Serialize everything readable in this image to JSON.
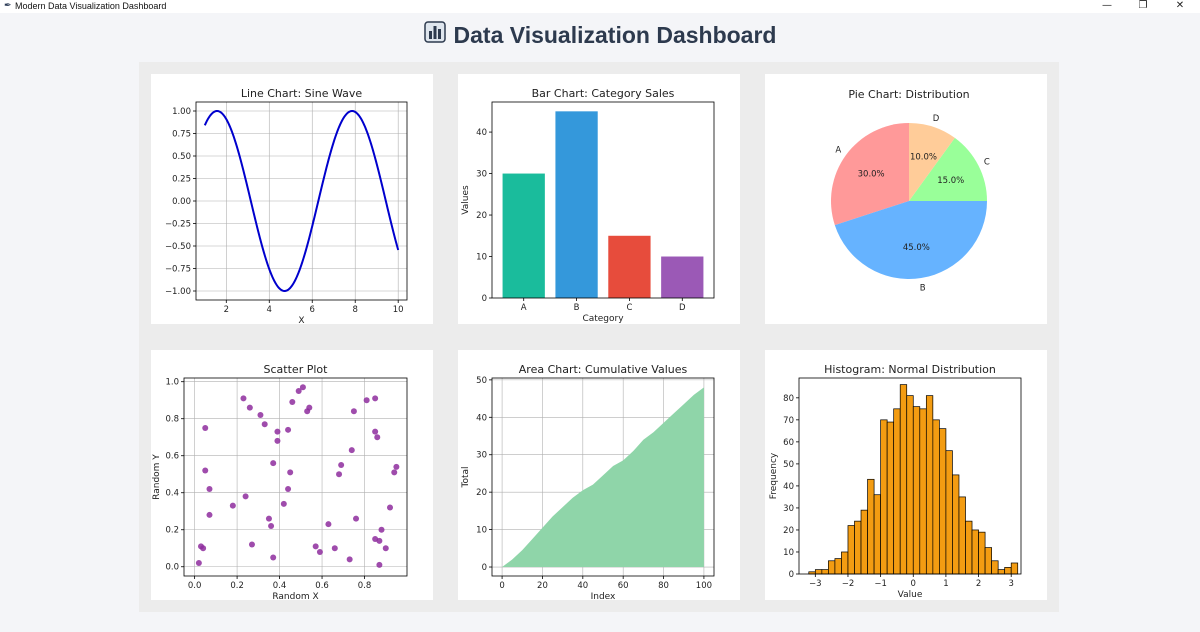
{
  "window": {
    "title": "Modern Data Visualization Dashboard",
    "controls": {
      "minimize": "—",
      "maximize": "❐",
      "close": "✕"
    }
  },
  "header": {
    "title": "Data Visualization Dashboard",
    "icon": "bar-chart-icon"
  },
  "colors": {
    "background": "#f4f5f8",
    "panel": "#ececec",
    "card": "#ffffff",
    "line": "#0000cd",
    "scatter": "#8e2d9e",
    "area": "#8fd5a9",
    "hist": "#f39c12",
    "bars": [
      "#1abc9c",
      "#3498db",
      "#e74c3c",
      "#9b59b6"
    ],
    "pie": [
      "#ff9999",
      "#66b3ff",
      "#99ff99",
      "#ffcc99"
    ]
  },
  "chart_data": [
    {
      "type": "line",
      "title": "Line Chart: Sine Wave",
      "xlabel": "X",
      "ylabel": "",
      "function": "sin(x)",
      "xlim": [
        0.59,
        10.41
      ],
      "x_range": [
        1,
        10
      ],
      "ylim": [
        -1.1,
        1.1
      ],
      "xticks": [
        2,
        4,
        6,
        8,
        10
      ],
      "yticks": [
        1.0,
        0.75,
        0.5,
        0.25,
        0.0,
        -0.25,
        -0.5,
        -0.75,
        -1.0
      ],
      "ytick_labels": [
        "1.00",
        "0.75",
        "0.50",
        "0.25",
        "0.00",
        "−0.25",
        "−0.50",
        "−0.75",
        "−1.00"
      ],
      "grid": true
    },
    {
      "type": "bar",
      "title": "Bar Chart: Category Sales",
      "xlabel": "Category",
      "ylabel": "Values",
      "categories": [
        "A",
        "B",
        "C",
        "D"
      ],
      "values": [
        30,
        45,
        15,
        10
      ],
      "ylim": [
        0,
        47.25
      ],
      "yticks": [
        0,
        10,
        20,
        30,
        40
      ],
      "grid": false
    },
    {
      "type": "pie",
      "title": "Pie Chart: Distribution",
      "labels": [
        "A",
        "B",
        "C",
        "D"
      ],
      "values": [
        30,
        45,
        15,
        10
      ],
      "pct_labels": [
        "30.0%",
        "45.0%",
        "15.0%",
        "10.0%"
      ],
      "startangle": 90
    },
    {
      "type": "scatter",
      "title": "Scatter Plot",
      "xlabel": "Random X",
      "ylabel": "Random Y",
      "xlim": [
        -0.05,
        1.0
      ],
      "ylim": [
        -0.05,
        1.02
      ],
      "xticks": [
        0.0,
        0.2,
        0.4,
        0.6,
        0.8
      ],
      "xtick_labels": [
        "0.0",
        "0.2",
        "0.4",
        "0.6",
        "0.8"
      ],
      "yticks": [
        0.0,
        0.2,
        0.4,
        0.6,
        0.8,
        1.0
      ],
      "ytick_labels": [
        "0.0",
        "0.2",
        "0.4",
        "0.6",
        "0.8",
        "1.0"
      ],
      "grid": true,
      "points": [
        [
          0.02,
          0.02
        ],
        [
          0.03,
          0.11
        ],
        [
          0.04,
          0.1
        ],
        [
          0.05,
          0.52
        ],
        [
          0.05,
          0.75
        ],
        [
          0.07,
          0.42
        ],
        [
          0.07,
          0.28
        ],
        [
          0.18,
          0.33
        ],
        [
          0.23,
          0.91
        ],
        [
          0.24,
          0.38
        ],
        [
          0.26,
          0.86
        ],
        [
          0.27,
          0.12
        ],
        [
          0.31,
          0.82
        ],
        [
          0.33,
          0.77
        ],
        [
          0.35,
          0.26
        ],
        [
          0.36,
          0.22
        ],
        [
          0.37,
          0.05
        ],
        [
          0.37,
          0.56
        ],
        [
          0.39,
          0.73
        ],
        [
          0.39,
          0.68
        ],
        [
          0.42,
          0.34
        ],
        [
          0.44,
          0.42
        ],
        [
          0.44,
          0.74
        ],
        [
          0.45,
          0.51
        ],
        [
          0.46,
          0.89
        ],
        [
          0.49,
          0.95
        ],
        [
          0.51,
          0.97
        ],
        [
          0.53,
          0.84
        ],
        [
          0.54,
          0.86
        ],
        [
          0.57,
          0.11
        ],
        [
          0.59,
          0.08
        ],
        [
          0.63,
          0.23
        ],
        [
          0.66,
          0.1
        ],
        [
          0.68,
          0.5
        ],
        [
          0.69,
          0.55
        ],
        [
          0.73,
          0.04
        ],
        [
          0.74,
          0.63
        ],
        [
          0.75,
          0.84
        ],
        [
          0.76,
          0.26
        ],
        [
          0.81,
          0.9
        ],
        [
          0.85,
          0.91
        ],
        [
          0.85,
          0.73
        ],
        [
          0.85,
          0.15
        ],
        [
          0.86,
          0.7
        ],
        [
          0.87,
          0.14
        ],
        [
          0.87,
          0.01
        ],
        [
          0.88,
          0.2
        ],
        [
          0.9,
          0.1
        ],
        [
          0.92,
          0.32
        ],
        [
          0.94,
          0.51
        ],
        [
          0.95,
          0.54
        ]
      ]
    },
    {
      "type": "area",
      "title": "Area Chart: Cumulative Values",
      "xlabel": "Index",
      "ylabel": "Total",
      "xlim": [
        -5,
        105
      ],
      "ylim": [
        -2.4,
        50.5
      ],
      "xticks": [
        0,
        20,
        40,
        60,
        80,
        100
      ],
      "yticks": [
        0,
        10,
        20,
        30,
        40,
        50
      ],
      "grid": true,
      "x": [
        0,
        5,
        10,
        15,
        20,
        25,
        30,
        35,
        40,
        45,
        50,
        55,
        60,
        65,
        70,
        75,
        80,
        85,
        90,
        95,
        100
      ],
      "y": [
        0,
        2,
        4.5,
        7.5,
        10.5,
        13.5,
        16,
        18.5,
        20.5,
        22,
        24.5,
        27,
        28.5,
        31,
        34,
        36,
        38.5,
        41,
        43.5,
        46,
        48
      ]
    },
    {
      "type": "histogram",
      "title": "Histogram: Normal Distribution",
      "xlabel": "Value",
      "ylabel": "Frequency",
      "xlim": [
        -3.5,
        3.3
      ],
      "ylim": [
        0,
        89
      ],
      "xticks": [
        -3,
        -2,
        -1,
        0,
        1,
        2,
        3
      ],
      "xtick_labels": [
        "−3",
        "−2",
        "−1",
        "0",
        "1",
        "2",
        "3"
      ],
      "yticks": [
        0,
        10,
        20,
        30,
        40,
        50,
        60,
        70,
        80
      ],
      "bin_start": -3.2,
      "bin_width": 0.2,
      "counts": [
        1,
        2,
        2,
        6,
        7,
        10,
        22,
        24,
        29,
        43,
        36,
        70,
        69,
        75,
        86,
        81,
        76,
        75,
        81,
        70,
        66,
        56,
        45,
        35,
        24,
        20,
        19,
        12,
        6,
        2,
        3,
        5
      ]
    }
  ]
}
